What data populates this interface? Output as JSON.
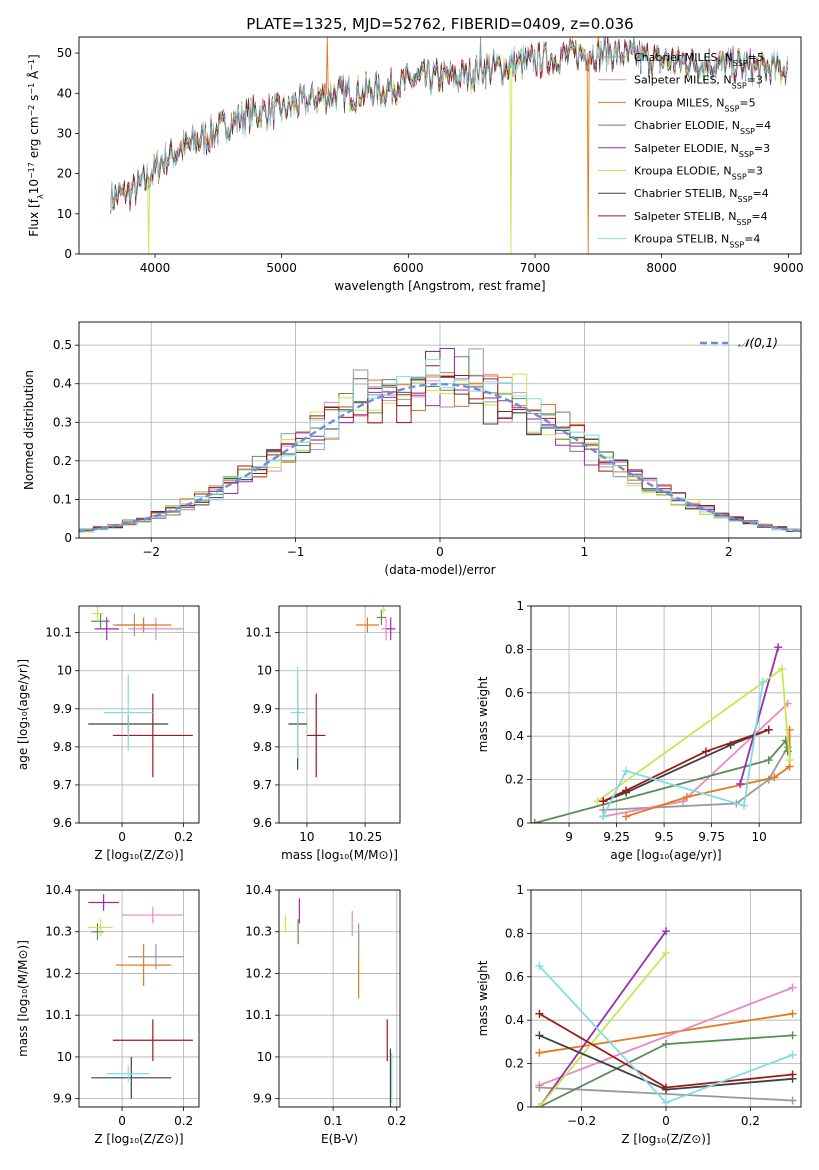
{
  "figure": {
    "title": "PLATE=1325, MJD=52762, FIBERID=0409, z=0.036"
  },
  "series": [
    {
      "key": "chabrier_miles",
      "name": "Chabrier MILES, N",
      "nssp": 5,
      "color": "#999999"
    },
    {
      "key": "salpeter_miles",
      "name": "Salpeter MILES, N",
      "nssp": 3,
      "color": "#e78ac3"
    },
    {
      "key": "kroupa_miles",
      "name": "Kroupa MILES, N",
      "nssp": 5,
      "color": "#e6781e"
    },
    {
      "key": "chabrier_elodie",
      "name": "Chabrier ELODIE, N",
      "nssp": 4,
      "color": "#5a8c5a"
    },
    {
      "key": "salpeter_elodie",
      "name": "Salpeter ELODIE, N",
      "nssp": 3,
      "color": "#9a2cb0"
    },
    {
      "key": "kroupa_elodie",
      "name": "Kroupa ELODIE, N",
      "nssp": 3,
      "color": "#c8e650"
    },
    {
      "key": "chabrier_stelib",
      "name": "Chabrier STELIB, N",
      "nssp": 4,
      "color": "#404040"
    },
    {
      "key": "salpeter_stelib",
      "name": "Salpeter STELIB, N",
      "nssp": 4,
      "color": "#a01818"
    },
    {
      "key": "kroupa_stelib",
      "name": "Kroupa STELIB, N",
      "nssp": 4,
      "color": "#80dce6"
    }
  ],
  "chart_data": [
    {
      "id": "spectrum",
      "type": "line",
      "title": "PLATE=1325, MJD=52762, FIBERID=0409, z=0.036",
      "xlabel": "wavelength [Angstrom, rest frame]",
      "ylabel": "Flux [f",
      "xlim": [
        3400,
        9100
      ],
      "ylim": [
        0,
        54
      ],
      "xticks": [
        4000,
        5000,
        6000,
        7000,
        8000,
        9000
      ],
      "yticks": [
        0,
        10,
        20,
        30,
        40,
        50
      ],
      "grid": false,
      "legend": "top-right",
      "continuum": [
        [
          3650,
          14
        ],
        [
          3800,
          15
        ],
        [
          3950,
          19
        ],
        [
          4050,
          23
        ],
        [
          4200,
          26
        ],
        [
          4400,
          29
        ],
        [
          4600,
          33
        ],
        [
          4800,
          35
        ],
        [
          5000,
          36
        ],
        [
          5200,
          38
        ],
        [
          5400,
          40
        ],
        [
          5600,
          40
        ],
        [
          5800,
          41
        ],
        [
          6000,
          43
        ],
        [
          6200,
          44
        ],
        [
          6400,
          44
        ],
        [
          6600,
          46
        ],
        [
          6800,
          47
        ],
        [
          7000,
          48
        ],
        [
          7200,
          49
        ],
        [
          7400,
          50
        ],
        [
          7600,
          50
        ],
        [
          7800,
          49
        ],
        [
          8000,
          48
        ],
        [
          8200,
          48
        ],
        [
          8400,
          47
        ],
        [
          8600,
          47
        ],
        [
          8800,
          46
        ],
        [
          9000,
          46
        ]
      ],
      "features": [
        [
          3950,
          0
        ],
        [
          5360,
          54
        ],
        [
          6570,
          54
        ],
        [
          6810,
          0
        ],
        [
          7420,
          0
        ]
      ]
    },
    {
      "id": "residual_hist",
      "type": "bar",
      "xlabel": "(data-model)/error",
      "ylabel": "Normed distribution",
      "xlim": [
        -2.5,
        2.5
      ],
      "ylim": [
        0,
        0.56
      ],
      "xticks": [
        -2,
        -1,
        0,
        1,
        2
      ],
      "yticks": [
        0.0,
        0.1,
        0.2,
        0.3,
        0.4,
        0.5
      ],
      "grid": true,
      "legend": "top-right",
      "reference": {
        "name": "𝒩(0,1)",
        "mu": 0,
        "sigma": 1,
        "color": "#6a8fd8"
      },
      "bin_width": 0.1
    },
    {
      "id": "age_vs_Z",
      "type": "scatter",
      "xlabel": "Z [log₁₀(Z/Z⊙)]",
      "ylabel": "age  [log₁₀(age/yr)]",
      "xlim": [
        -0.14,
        0.25
      ],
      "ylim": [
        9.6,
        10.17
      ],
      "xticks": [
        0.0,
        0.2
      ],
      "yticks": [
        9.6,
        9.7,
        9.8,
        9.9,
        10.0,
        10.1
      ],
      "grid": true,
      "points": [
        {
          "series": "chabrier_miles",
          "x": 0.04,
          "y": 10.12,
          "xerr": 0.07,
          "yerr": 0.03
        },
        {
          "series": "salpeter_miles",
          "x": 0.11,
          "y": 10.11,
          "xerr": 0.09,
          "yerr": 0.03
        },
        {
          "series": "kroupa_miles",
          "x": 0.07,
          "y": 10.12,
          "xerr": 0.09,
          "yerr": 0.02
        },
        {
          "series": "chabrier_elodie",
          "x": -0.07,
          "y": 10.13,
          "xerr": 0.03,
          "yerr": 0.02
        },
        {
          "series": "salpeter_elodie",
          "x": -0.05,
          "y": 10.11,
          "xerr": 0.04,
          "yerr": 0.03
        },
        {
          "series": "kroupa_elodie",
          "x": -0.08,
          "y": 10.15,
          "xerr": 0.02,
          "yerr": 0.02
        },
        {
          "series": "chabrier_stelib",
          "x": 0.02,
          "y": 9.86,
          "xerr": 0.13,
          "yerr": 0.02
        },
        {
          "series": "salpeter_stelib",
          "x": 0.1,
          "y": 9.83,
          "xerr": 0.13,
          "yerr": 0.11
        },
        {
          "series": "kroupa_stelib",
          "x": 0.02,
          "y": 9.89,
          "xerr": 0.08,
          "yerr": 0.1
        }
      ]
    },
    {
      "id": "age_vs_mass",
      "type": "scatter",
      "xlabel": "mass [log₁₀(M/M⊙)]",
      "ylabel": "",
      "xlim": [
        9.88,
        10.4
      ],
      "ylim": [
        9.6,
        10.17
      ],
      "xticks": [
        10.0,
        10.25
      ],
      "yticks": [
        9.6,
        9.7,
        9.8,
        9.9,
        10.0,
        10.1
      ],
      "grid": true,
      "points": [
        {
          "series": "salpeter_miles",
          "x": 10.34,
          "y": 10.11,
          "xerr": 0.02,
          "yerr": 0.03
        },
        {
          "series": "kroupa_miles",
          "x": 10.26,
          "y": 10.12,
          "xerr": 0.05,
          "yerr": 0.02
        },
        {
          "series": "chabrier_elodie",
          "x": 10.32,
          "y": 10.14,
          "xerr": 0.02,
          "yerr": 0.02
        },
        {
          "series": "salpeter_elodie",
          "x": 10.36,
          "y": 10.11,
          "xerr": 0.02,
          "yerr": 0.03
        },
        {
          "series": "kroupa_elodie",
          "x": 10.33,
          "y": 10.16,
          "xerr": 0.01,
          "yerr": 0.01
        },
        {
          "series": "chabrier_stelib",
          "x": 9.96,
          "y": 9.86,
          "xerr": 0.04,
          "yerr": 0.12
        },
        {
          "series": "salpeter_stelib",
          "x": 10.04,
          "y": 9.83,
          "xerr": 0.04,
          "yerr": 0.11
        },
        {
          "series": "kroupa_stelib",
          "x": 9.96,
          "y": 9.89,
          "xerr": 0.03,
          "yerr": 0.12
        }
      ]
    },
    {
      "id": "weight_vs_age",
      "type": "line",
      "xlabel": "age  [log₁₀(age/yr)]",
      "ylabel": "mass weight",
      "xlim": [
        8.8,
        10.22
      ],
      "ylim": [
        0,
        1
      ],
      "xticks": [
        9.0,
        9.25,
        9.5,
        9.75,
        10.0
      ],
      "yticks": [
        0.0,
        0.2,
        0.4,
        0.6,
        0.8,
        1.0
      ],
      "grid": true,
      "lines": [
        {
          "series": "chabrier_miles",
          "pts": [
            [
              9.18,
              0.06
            ],
            [
              9.88,
              0.09
            ],
            [
              10.05,
              0.2
            ],
            [
              10.15,
              0.35
            ]
          ]
        },
        {
          "series": "salpeter_miles",
          "pts": [
            [
              9.18,
              0.03
            ],
            [
              9.6,
              0.1
            ],
            [
              10.15,
              0.55
            ]
          ]
        },
        {
          "series": "kroupa_miles",
          "pts": [
            [
              9.3,
              0.03
            ],
            [
              9.62,
              0.12
            ],
            [
              10.08,
              0.21
            ],
            [
              10.16,
              0.26
            ],
            [
              10.16,
              0.43
            ]
          ]
        },
        {
          "series": "chabrier_elodie",
          "pts": [
            [
              8.82,
              0.0
            ],
            [
              10.05,
              0.29
            ],
            [
              10.14,
              0.38
            ],
            [
              10.15,
              0.33
            ]
          ]
        },
        {
          "series": "salpeter_elodie",
          "pts": [
            [
              9.9,
              0.18
            ],
            [
              10.1,
              0.81
            ]
          ]
        },
        {
          "series": "kroupa_elodie",
          "pts": [
            [
              9.15,
              0.1
            ],
            [
              10.12,
              0.71
            ],
            [
              10.16,
              0.29
            ]
          ]
        },
        {
          "series": "chabrier_stelib",
          "pts": [
            [
              9.18,
              0.1
            ],
            [
              9.3,
              0.14
            ],
            [
              9.85,
              0.36
            ],
            [
              10.05,
              0.43
            ]
          ]
        },
        {
          "series": "salpeter_stelib",
          "pts": [
            [
              9.18,
              0.1
            ],
            [
              9.3,
              0.15
            ],
            [
              9.72,
              0.33
            ],
            [
              10.05,
              0.43
            ]
          ]
        },
        {
          "series": "kroupa_stelib",
          "pts": [
            [
              9.18,
              0.03
            ],
            [
              9.3,
              0.24
            ],
            [
              9.92,
              0.08
            ],
            [
              10.02,
              0.65
            ]
          ]
        }
      ]
    },
    {
      "id": "mass_vs_Z",
      "type": "scatter",
      "xlabel": "Z [log₁₀(Z/Z⊙)]",
      "ylabel": "mass [log₁₀(M/M⊙)]",
      "xlim": [
        -0.14,
        0.25
      ],
      "ylim": [
        9.88,
        10.4
      ],
      "xticks": [
        0.0,
        0.2
      ],
      "yticks": [
        9.9,
        10.0,
        10.1,
        10.2,
        10.3,
        10.4
      ],
      "grid": true,
      "points": [
        {
          "series": "salpeter_miles",
          "x": 0.1,
          "y": 10.34,
          "xerr": 0.1,
          "yerr": 0.02
        },
        {
          "series": "kroupa_miles",
          "x": 0.07,
          "y": 10.22,
          "xerr": 0.09,
          "yerr": 0.05
        },
        {
          "series": "chabrier_miles",
          "x": 0.11,
          "y": 10.24,
          "xerr": 0.09,
          "yerr": 0.03
        },
        {
          "series": "chabrier_elodie",
          "x": -0.08,
          "y": 10.3,
          "xerr": 0.02,
          "yerr": 0.02
        },
        {
          "series": "salpeter_elodie",
          "x": -0.06,
          "y": 10.37,
          "xerr": 0.05,
          "yerr": 0.02
        },
        {
          "series": "kroupa_elodie",
          "x": -0.07,
          "y": 10.31,
          "xerr": 0.04,
          "yerr": 0.02
        },
        {
          "series": "chabrier_stelib",
          "x": 0.03,
          "y": 9.95,
          "xerr": 0.13,
          "yerr": 0.05
        },
        {
          "series": "salpeter_stelib",
          "x": 0.1,
          "y": 10.04,
          "xerr": 0.13,
          "yerr": 0.05
        },
        {
          "series": "kroupa_stelib",
          "x": 0.02,
          "y": 9.96,
          "xerr": 0.07,
          "yerr": 0.02
        }
      ]
    },
    {
      "id": "mass_vs_ebv",
      "type": "scatter",
      "xlabel": "E(B-V)",
      "ylabel": "",
      "xlim": [
        0.015,
        0.205
      ],
      "ylim": [
        9.88,
        10.4
      ],
      "xticks": [
        0.1,
        0.2
      ],
      "yticks": [
        9.9,
        10.0,
        10.1,
        10.2,
        10.3,
        10.4
      ],
      "grid": true,
      "points": [
        {
          "series": "salpeter_miles",
          "x": 0.13,
          "y": 10.32,
          "xerr": 0,
          "yerr": 0.03
        },
        {
          "series": "kroupa_miles",
          "x": 0.14,
          "y": 10.22,
          "xerr": 0,
          "yerr": 0.08
        },
        {
          "series": "chabrier_miles",
          "x": 0.14,
          "y": 10.28,
          "xerr": 0,
          "yerr": 0.04
        },
        {
          "series": "chabrier_elodie",
          "x": 0.045,
          "y": 10.3,
          "xerr": 0,
          "yerr": 0.03
        },
        {
          "series": "salpeter_elodie",
          "x": 0.047,
          "y": 10.35,
          "xerr": 0,
          "yerr": 0.03
        },
        {
          "series": "kroupa_elodie",
          "x": 0.025,
          "y": 10.32,
          "xerr": 0,
          "yerr": 0.02
        },
        {
          "series": "chabrier_stelib",
          "x": 0.19,
          "y": 9.95,
          "xerr": 0,
          "yerr": 0.07
        },
        {
          "series": "salpeter_stelib",
          "x": 0.185,
          "y": 10.04,
          "xerr": 0,
          "yerr": 0.05
        },
        {
          "series": "kroupa_stelib",
          "x": 0.192,
          "y": 9.95,
          "xerr": 0,
          "yerr": 0.06
        }
      ]
    },
    {
      "id": "weight_vs_Z",
      "type": "line",
      "xlabel": "Z [log₁₀(Z/Z⊙)]",
      "ylabel": "mass weight",
      "xlim": [
        -0.32,
        0.32
      ],
      "ylim": [
        0,
        1
      ],
      "xticks": [
        -0.2,
        0.0,
        0.2
      ],
      "yticks": [
        0.0,
        0.2,
        0.4,
        0.6,
        0.8,
        1.0
      ],
      "grid": true,
      "lines": [
        {
          "series": "kroupa_miles",
          "pts": [
            [
              -0.3,
              0.25
            ],
            [
              0.3,
              0.43
            ]
          ]
        },
        {
          "series": "salpeter_miles",
          "pts": [
            [
              -0.3,
              0.1
            ],
            [
              0.3,
              0.55
            ]
          ]
        },
        {
          "series": "chabrier_miles",
          "pts": [
            [
              -0.3,
              0.09
            ],
            [
              0.3,
              0.03
            ]
          ]
        },
        {
          "series": "chabrier_elodie",
          "pts": [
            [
              -0.3,
              0.0
            ],
            [
              0.0,
              0.29
            ],
            [
              0.3,
              0.33
            ]
          ]
        },
        {
          "series": "salpeter_elodie",
          "pts": [
            [
              -0.3,
              0.0
            ],
            [
              0.0,
              0.81
            ]
          ]
        },
        {
          "series": "kroupa_elodie",
          "pts": [
            [
              -0.3,
              0.0
            ],
            [
              0.0,
              0.71
            ]
          ]
        },
        {
          "series": "chabrier_stelib",
          "pts": [
            [
              -0.3,
              0.33
            ],
            [
              0.0,
              0.08
            ],
            [
              0.3,
              0.13
            ]
          ]
        },
        {
          "series": "salpeter_stelib",
          "pts": [
            [
              -0.3,
              0.43
            ],
            [
              0.0,
              0.09
            ],
            [
              0.3,
              0.15
            ]
          ]
        },
        {
          "series": "kroupa_stelib",
          "pts": [
            [
              -0.3,
              0.65
            ],
            [
              0.0,
              0.02
            ],
            [
              0.3,
              0.24
            ]
          ]
        }
      ]
    }
  ]
}
